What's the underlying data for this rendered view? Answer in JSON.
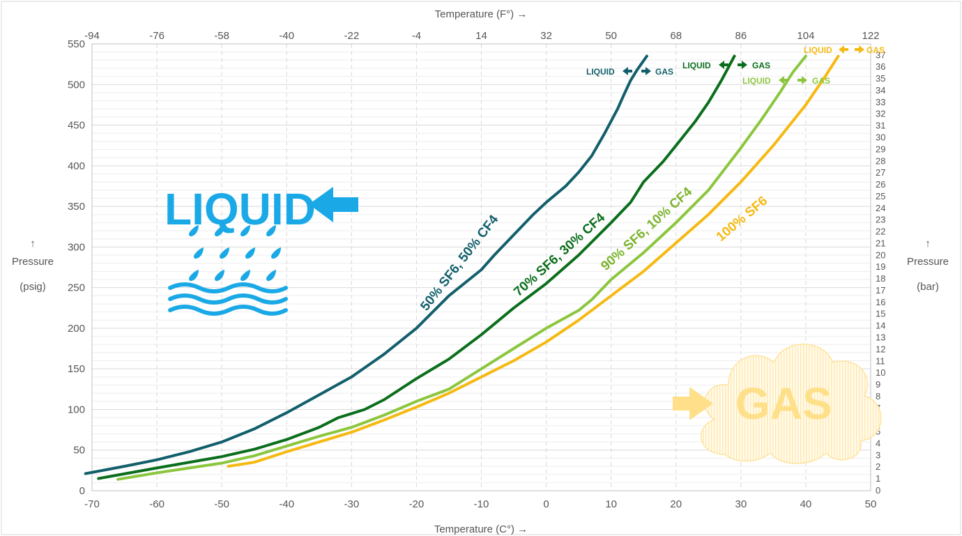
{
  "chart_data": {
    "type": "line",
    "x_axis_bottom": {
      "label": "Temperature (C°) →",
      "range": [
        -70,
        50
      ],
      "ticks": [
        -70,
        -60,
        -50,
        -40,
        -30,
        -20,
        -10,
        0,
        10,
        20,
        30,
        40,
        50
      ]
    },
    "x_axis_top": {
      "label": "Temperature (F°) →",
      "ticks": [
        -94,
        -76,
        -58,
        -40,
        -22,
        -4,
        14,
        32,
        50,
        68,
        86,
        104,
        122
      ]
    },
    "y_axis_left": {
      "label_arrow": "↑",
      "label_line1": "Pressure",
      "label_line2": "(psig)",
      "range": [
        0,
        550
      ],
      "ticks": [
        0,
        50,
        100,
        150,
        200,
        250,
        300,
        350,
        400,
        450,
        500,
        550
      ]
    },
    "y_axis_right": {
      "label_arrow": "↑",
      "label_line1": "Pressure",
      "label_line2": "(bar)",
      "range": [
        0,
        37
      ],
      "ticks": [
        0,
        1,
        2,
        3,
        4,
        5,
        6,
        7,
        8,
        9,
        10,
        11,
        12,
        13,
        14,
        15,
        16,
        17,
        18,
        19,
        20,
        21,
        22,
        23,
        24,
        25,
        26,
        27,
        28,
        29,
        30,
        31,
        32,
        33,
        34,
        35,
        36,
        37
      ]
    },
    "grid": true,
    "series": [
      {
        "name": "50% SF6, 50% CF4",
        "color": "#125f6b",
        "points": [
          [
            -71,
            21
          ],
          [
            -65,
            30
          ],
          [
            -60,
            38
          ],
          [
            -55,
            48
          ],
          [
            -50,
            60
          ],
          [
            -45,
            76
          ],
          [
            -40,
            96
          ],
          [
            -35,
            118
          ],
          [
            -30,
            140
          ],
          [
            -25,
            168
          ],
          [
            -20,
            200
          ],
          [
            -15,
            240
          ],
          [
            -10,
            272
          ],
          [
            -8,
            290
          ],
          [
            -5,
            315
          ],
          [
            -2,
            340
          ],
          [
            0,
            355
          ],
          [
            3,
            375
          ],
          [
            5,
            392
          ],
          [
            7,
            412
          ],
          [
            9,
            440
          ],
          [
            11,
            470
          ],
          [
            12,
            488
          ],
          [
            13,
            505
          ],
          [
            14,
            518
          ],
          [
            15.5,
            535
          ]
        ]
      },
      {
        "name": "70% SF6, 30% CF4",
        "color": "#0b6e1c",
        "points": [
          [
            -69,
            15
          ],
          [
            -60,
            28
          ],
          [
            -50,
            42
          ],
          [
            -45,
            51
          ],
          [
            -40,
            63
          ],
          [
            -35,
            78
          ],
          [
            -32,
            90
          ],
          [
            -28,
            100
          ],
          [
            -25,
            112
          ],
          [
            -20,
            138
          ],
          [
            -15,
            162
          ],
          [
            -10,
            192
          ],
          [
            -5,
            225
          ],
          [
            0,
            255
          ],
          [
            5,
            290
          ],
          [
            10,
            330
          ],
          [
            13,
            355
          ],
          [
            15,
            380
          ],
          [
            18,
            405
          ],
          [
            20,
            425
          ],
          [
            23,
            455
          ],
          [
            25,
            478
          ],
          [
            27,
            505
          ],
          [
            28,
            520
          ],
          [
            29,
            535
          ]
        ]
      },
      {
        "name": "90% SF6, 10% CF4",
        "color": "#8bc63e",
        "points": [
          [
            -66,
            14
          ],
          [
            -60,
            22
          ],
          [
            -50,
            34
          ],
          [
            -45,
            43
          ],
          [
            -40,
            55
          ],
          [
            -35,
            67
          ],
          [
            -30,
            78
          ],
          [
            -25,
            93
          ],
          [
            -20,
            110
          ],
          [
            -15,
            125
          ],
          [
            -10,
            150
          ],
          [
            -5,
            175
          ],
          [
            0,
            200
          ],
          [
            5,
            222
          ],
          [
            7,
            235
          ],
          [
            10,
            260
          ],
          [
            15,
            293
          ],
          [
            20,
            330
          ],
          [
            25,
            370
          ],
          [
            30,
            422
          ],
          [
            33,
            455
          ],
          [
            36,
            490
          ],
          [
            38,
            515
          ],
          [
            40,
            535
          ]
        ]
      },
      {
        "name": "100% SF6",
        "color": "#f5b911",
        "points": [
          [
            -49,
            30
          ],
          [
            -45,
            35
          ],
          [
            -40,
            48
          ],
          [
            -35,
            60
          ],
          [
            -30,
            72
          ],
          [
            -25,
            87
          ],
          [
            -20,
            103
          ],
          [
            -15,
            120
          ],
          [
            -10,
            140
          ],
          [
            -5,
            160
          ],
          [
            0,
            183
          ],
          [
            5,
            210
          ],
          [
            10,
            240
          ],
          [
            15,
            270
          ],
          [
            20,
            305
          ],
          [
            25,
            340
          ],
          [
            30,
            380
          ],
          [
            35,
            425
          ],
          [
            40,
            475
          ],
          [
            43,
            510
          ],
          [
            45,
            535
          ]
        ]
      }
    ],
    "phase_labels": [
      {
        "liquid": "LIQUID",
        "gas": "GAS"
      },
      {
        "liquid": "LIQUID",
        "gas": "GAS"
      },
      {
        "liquid": "LIQUID",
        "gas": "GAS"
      },
      {
        "liquid": "LIQUID",
        "gas": "GAS"
      }
    ],
    "region_labels": {
      "liquid": "LIQUID",
      "gas": "GAS"
    }
  }
}
